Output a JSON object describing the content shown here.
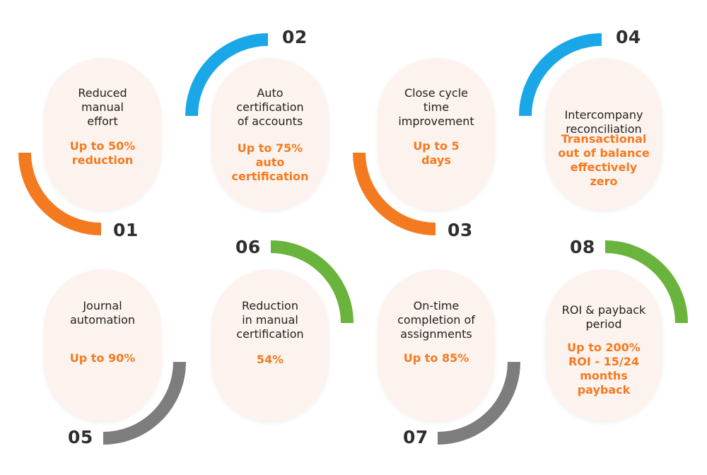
{
  "colors": {
    "orange": "#f47a20",
    "blue": "#1aa7e8",
    "green": "#6ab33c",
    "gray": "#7d7d7d",
    "card_bg": "#fdf3ee",
    "value_text": "#f47a20"
  },
  "items": [
    {
      "number": "01",
      "title": "Reduced\nmanual\neffort",
      "value": "Up to 50%\nreduction",
      "arc_color": "orange"
    },
    {
      "number": "02",
      "title": "Auto\ncertification\nof accounts",
      "value": "Up to 75%\nauto\ncertification",
      "arc_color": "blue"
    },
    {
      "number": "03",
      "title": "Close cycle\ntime\nimprovement",
      "value": "Up to 5\ndays",
      "arc_color": "orange"
    },
    {
      "number": "04",
      "title": "Intercompany\nreconciliation",
      "value": "Transactional\nout of balance\neffectively\nzero",
      "arc_color": "blue"
    },
    {
      "number": "05",
      "title": "Journal\nautomation",
      "value": "Up to 90%",
      "arc_color": "gray"
    },
    {
      "number": "06",
      "title": "Reduction\nin manual\ncertification",
      "value": "54%",
      "arc_color": "green"
    },
    {
      "number": "07",
      "title": "On-time\ncompletion of\nassignments",
      "value": "Up to 85%",
      "arc_color": "gray"
    },
    {
      "number": "08",
      "title": "ROI & payback\nperiod",
      "value": "Up to 200%\nROI  - 15/24\nmonths\npayback",
      "arc_color": "green"
    }
  ]
}
